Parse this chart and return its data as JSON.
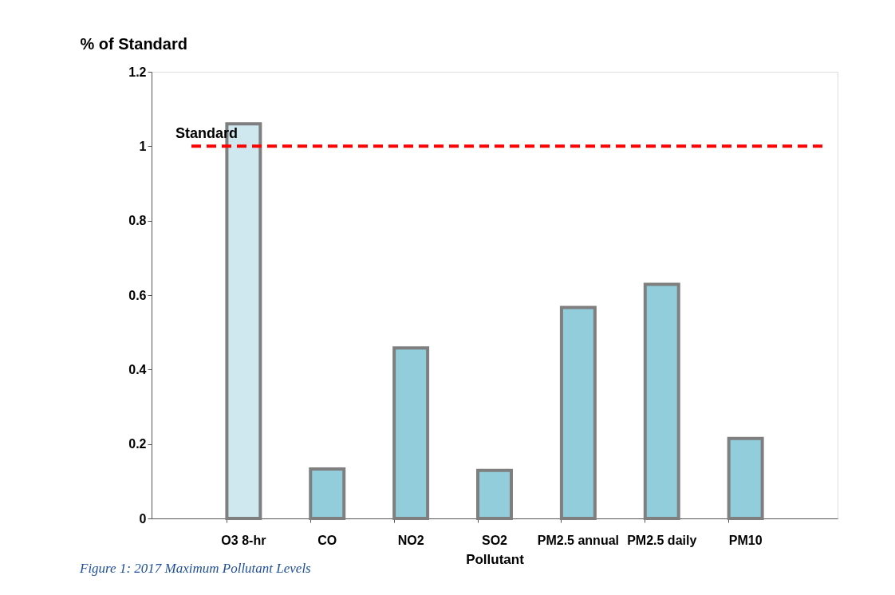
{
  "chart_data": {
    "type": "bar",
    "ylabel": "% of Standard",
    "xlabel": "Pollutant",
    "categories": [
      "O3 8-hr",
      "CO",
      "NO2",
      "SO2",
      "PM2.5 annual",
      "PM2.5 daily",
      "PM10"
    ],
    "values": [
      1.06,
      0.133,
      0.458,
      0.129,
      0.567,
      0.629,
      0.215
    ],
    "colors": [
      "#cfe8f0",
      "#92cddc",
      "#92cddc",
      "#92cddc",
      "#92cddc",
      "#92cddc",
      "#92cddc"
    ],
    "ylim": [
      0,
      1.2
    ],
    "yticks": [
      0,
      0.2,
      0.4,
      0.6,
      0.8,
      1,
      1.2
    ],
    "grid": false,
    "ref_lines": [
      {
        "axis": "y",
        "value": 1,
        "label": "Standard",
        "color": "#ff0000",
        "line_style": "dashed"
      }
    ],
    "annotations": [
      "Figure 1: 2017 Maximum Pollutant Levels"
    ]
  }
}
